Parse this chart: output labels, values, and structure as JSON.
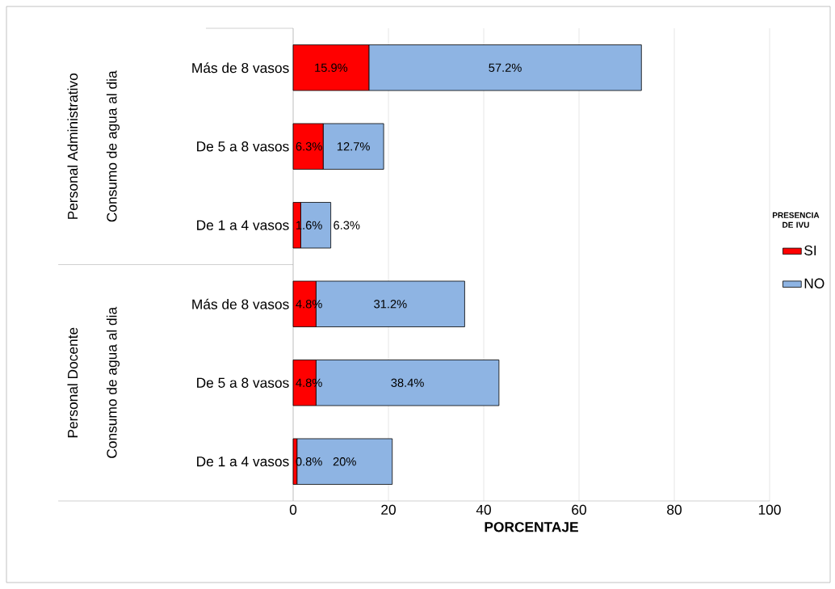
{
  "chart_data": {
    "type": "bar",
    "orientation": "horizontal",
    "stacked": true,
    "categories": [
      "Más de 8 vasos",
      "De 5 a 8 vasos",
      "De 1 a 4 vasos",
      "Más de 8 vasos",
      "De 5 a 8 vasos",
      "De 1 a 4 vasos"
    ],
    "series": [
      {
        "name": "SI",
        "color": "#ff0000",
        "values": [
          15.9,
          6.3,
          1.6,
          4.8,
          4.8,
          0.8
        ],
        "value_labels": [
          "15.9%",
          "6.3%",
          "1.6%",
          "4.8%",
          "4.8%",
          "0.8%"
        ]
      },
      {
        "name": "NO",
        "color": "#8eb4e3",
        "values": [
          57.2,
          12.7,
          6.3,
          31.2,
          38.4,
          20
        ],
        "value_labels": [
          "57.2%",
          "12.7%",
          "6.3%",
          "31.2%",
          "38.4%",
          "20%"
        ]
      }
    ],
    "xlabel": "PORCENTAJE",
    "legend_title": "PRESENCIA DE IVU",
    "legend": "right",
    "xlim": [
      0,
      100
    ],
    "xticks": [
      0,
      20,
      40,
      60,
      80,
      100
    ],
    "grid": "x",
    "annotations": [
      "Personal Administrativo",
      "Consumo de agua al dia",
      "Personal Docente",
      "Consumo de agua al dia"
    ]
  }
}
